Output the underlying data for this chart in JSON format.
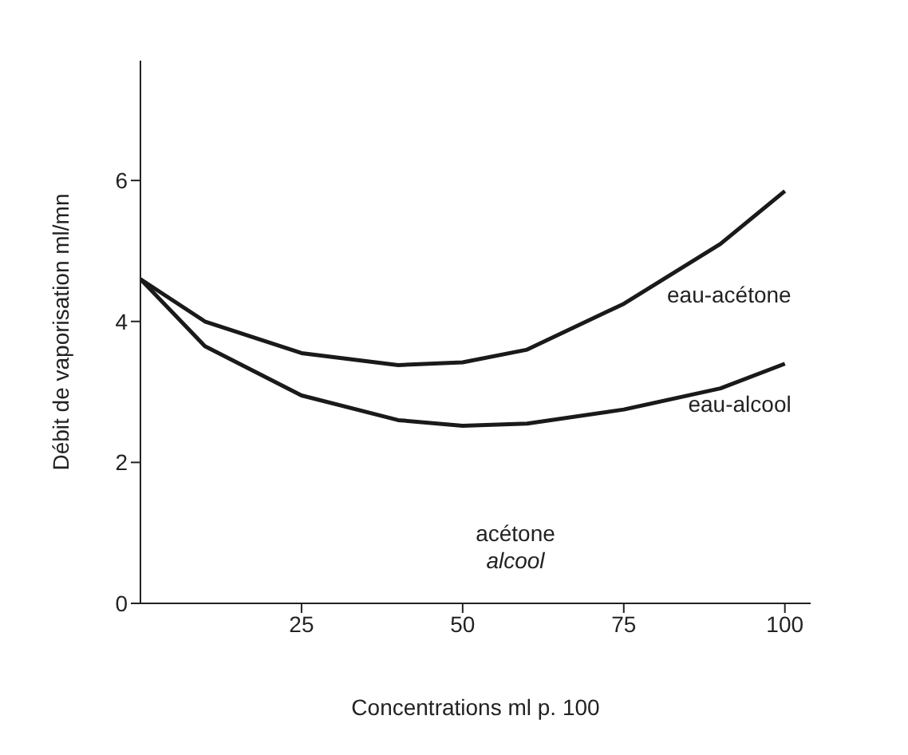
{
  "chart_data": {
    "type": "line",
    "xlabel": "Concentrations ml p. 100",
    "ylabel": "Débit de vaporisation ml/mn",
    "x": [
      0,
      10,
      25,
      40,
      50,
      60,
      75,
      90,
      100
    ],
    "series": [
      {
        "name": "eau-acétone",
        "color": "#1a1a1a",
        "values": [
          4.6,
          4.0,
          3.55,
          3.38,
          3.42,
          3.6,
          4.25,
          5.1,
          5.85
        ]
      },
      {
        "name": "eau-alcool",
        "color": "#1a1a1a",
        "values": [
          4.6,
          3.65,
          2.95,
          2.6,
          2.52,
          2.55,
          2.75,
          3.05,
          3.4
        ]
      }
    ],
    "xlim": [
      0,
      104
    ],
    "xticks": [
      25,
      50,
      75,
      100
    ],
    "ylim": [
      0,
      7.7
    ],
    "yticks": [
      0,
      2,
      4,
      6
    ],
    "annotations": [
      "acétone",
      "alcool"
    ],
    "marker": "none",
    "line_style": "solid",
    "grid": false
  }
}
